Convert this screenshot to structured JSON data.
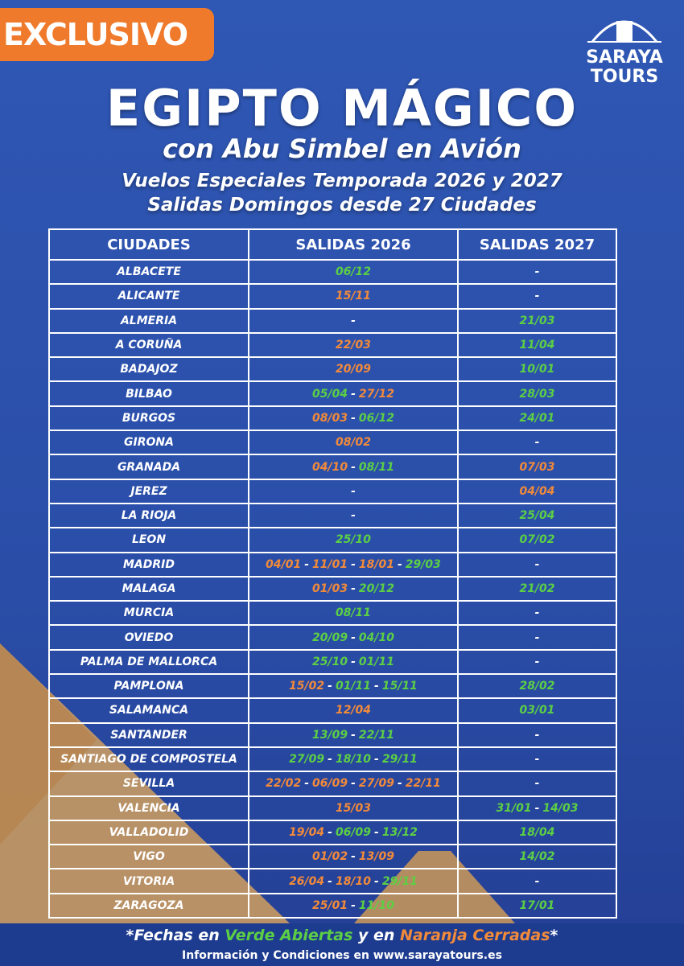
{
  "badge": "EXCLUSIVO",
  "logo": {
    "line1": "SARAYA",
    "line2": "TOURS"
  },
  "header": {
    "title": "EGIPTO MÁGICO",
    "subtitle": "con Abu Simbel en Avión",
    "line1": "Vuelos Especiales Temporada 2026 y 2027",
    "line2": "Salidas Domingos desde 27 Ciudades"
  },
  "table": {
    "columns": [
      "CIUDADES",
      "SALIDAS 2026",
      "SALIDAS 2027"
    ],
    "separator": "-",
    "rows": [
      [
        "ALBACETE",
        [
          {
            "t": "06/12",
            "c": "#5ccf45"
          }
        ],
        [
          {
            "t": "-",
            "c": "#ffffff"
          }
        ]
      ],
      [
        "ALICANTE",
        [
          {
            "t": "15/11",
            "c": "#f28a3a"
          }
        ],
        [
          {
            "t": "-",
            "c": "#ffffff"
          }
        ]
      ],
      [
        "ALMERIA",
        [
          {
            "t": "-",
            "c": "#ffffff"
          }
        ],
        [
          {
            "t": "21/03",
            "c": "#5ccf45"
          }
        ]
      ],
      [
        "A CORUÑA",
        [
          {
            "t": "22/03",
            "c": "#f28a3a"
          }
        ],
        [
          {
            "t": "11/04",
            "c": "#5ccf45"
          }
        ]
      ],
      [
        "BADAJOZ",
        [
          {
            "t": "20/09",
            "c": "#f28a3a"
          }
        ],
        [
          {
            "t": "10/01",
            "c": "#5ccf45"
          }
        ]
      ],
      [
        "BILBAO",
        [
          {
            "t": "05/04",
            "c": "#5ccf45"
          },
          {
            "t": "27/12",
            "c": "#f28a3a"
          }
        ],
        [
          {
            "t": "28/03",
            "c": "#5ccf45"
          }
        ]
      ],
      [
        "BURGOS",
        [
          {
            "t": "08/03",
            "c": "#f28a3a"
          },
          {
            "t": "06/12",
            "c": "#5ccf45"
          }
        ],
        [
          {
            "t": "24/01",
            "c": "#5ccf45"
          }
        ]
      ],
      [
        "GIRONA",
        [
          {
            "t": "08/02",
            "c": "#f28a3a"
          }
        ],
        [
          {
            "t": "-",
            "c": "#ffffff"
          }
        ]
      ],
      [
        "GRANADA",
        [
          {
            "t": "04/10",
            "c": "#f28a3a"
          },
          {
            "t": "08/11",
            "c": "#5ccf45"
          }
        ],
        [
          {
            "t": "07/03",
            "c": "#f28a3a"
          }
        ]
      ],
      [
        "JEREZ",
        [
          {
            "t": "-",
            "c": "#ffffff"
          }
        ],
        [
          {
            "t": "04/04",
            "c": "#f28a3a"
          }
        ]
      ],
      [
        "LA RIOJA",
        [
          {
            "t": "-",
            "c": "#ffffff"
          }
        ],
        [
          {
            "t": "25/04",
            "c": "#5ccf45"
          }
        ]
      ],
      [
        "LEON",
        [
          {
            "t": "25/10",
            "c": "#5ccf45"
          }
        ],
        [
          {
            "t": "07/02",
            "c": "#5ccf45"
          }
        ]
      ],
      [
        "MADRID",
        [
          {
            "t": "04/01",
            "c": "#f28a3a"
          },
          {
            "t": "11/01",
            "c": "#f28a3a"
          },
          {
            "t": "18/01",
            "c": "#f28a3a"
          },
          {
            "t": "29/03",
            "c": "#5ccf45"
          }
        ],
        [
          {
            "t": "-",
            "c": "#ffffff"
          }
        ]
      ],
      [
        "MALAGA",
        [
          {
            "t": "01/03",
            "c": "#f28a3a"
          },
          {
            "t": "20/12",
            "c": "#5ccf45"
          }
        ],
        [
          {
            "t": "21/02",
            "c": "#5ccf45"
          }
        ]
      ],
      [
        "MURCIA",
        [
          {
            "t": "08/11",
            "c": "#5ccf45"
          }
        ],
        [
          {
            "t": "-",
            "c": "#ffffff"
          }
        ]
      ],
      [
        "OVIEDO",
        [
          {
            "t": "20/09",
            "c": "#5ccf45"
          },
          {
            "t": "04/10",
            "c": "#5ccf45"
          }
        ],
        [
          {
            "t": "-",
            "c": "#ffffff"
          }
        ]
      ],
      [
        "PALMA DE  MALLORCA",
        [
          {
            "t": "25/10",
            "c": "#5ccf45"
          },
          {
            "t": "01/11",
            "c": "#5ccf45"
          }
        ],
        [
          {
            "t": "-",
            "c": "#ffffff"
          }
        ]
      ],
      [
        "PAMPLONA",
        [
          {
            "t": "15/02",
            "c": "#f28a3a"
          },
          {
            "t": "01/11",
            "c": "#5ccf45"
          },
          {
            "t": "15/11",
            "c": "#5ccf45"
          }
        ],
        [
          {
            "t": "28/02",
            "c": "#5ccf45"
          }
        ]
      ],
      [
        "SALAMANCA",
        [
          {
            "t": "12/04",
            "c": "#f28a3a"
          }
        ],
        [
          {
            "t": "03/01",
            "c": "#5ccf45"
          }
        ]
      ],
      [
        "SANTANDER",
        [
          {
            "t": "13/09",
            "c": "#5ccf45"
          },
          {
            "t": "22/11",
            "c": "#5ccf45"
          }
        ],
        [
          {
            "t": "-",
            "c": "#ffffff"
          }
        ]
      ],
      [
        "SANTIAGO DE COMPOSTELA",
        [
          {
            "t": "27/09",
            "c": "#5ccf45"
          },
          {
            "t": "18/10",
            "c": "#5ccf45"
          },
          {
            "t": "29/11",
            "c": "#5ccf45"
          }
        ],
        [
          {
            "t": "-",
            "c": "#ffffff"
          }
        ]
      ],
      [
        "SEVILLA",
        [
          {
            "t": "22/02",
            "c": "#f28a3a"
          },
          {
            "t": "06/09",
            "c": "#f28a3a"
          },
          {
            "t": "27/09",
            "c": "#f28a3a"
          },
          {
            "t": "22/11",
            "c": "#f28a3a"
          }
        ],
        [
          {
            "t": "-",
            "c": "#ffffff"
          }
        ]
      ],
      [
        "VALENCIA",
        [
          {
            "t": "15/03",
            "c": "#f28a3a"
          }
        ],
        [
          {
            "t": "31/01",
            "c": "#5ccf45"
          },
          {
            "t": "14/03",
            "c": "#5ccf45"
          }
        ]
      ],
      [
        "VALLADOLID",
        [
          {
            "t": "19/04",
            "c": "#f28a3a"
          },
          {
            "t": "06/09",
            "c": "#5ccf45"
          },
          {
            "t": "13/12",
            "c": "#5ccf45"
          }
        ],
        [
          {
            "t": "18/04",
            "c": "#5ccf45"
          }
        ]
      ],
      [
        "VIGO",
        [
          {
            "t": "01/02",
            "c": "#f28a3a"
          },
          {
            "t": "13/09",
            "c": "#f28a3a"
          }
        ],
        [
          {
            "t": "14/02",
            "c": "#5ccf45"
          }
        ]
      ],
      [
        "VITORIA",
        [
          {
            "t": "26/04",
            "c": "#f28a3a"
          },
          {
            "t": "18/10",
            "c": "#f28a3a"
          },
          {
            "t": "29/11",
            "c": "#5ccf45"
          }
        ],
        [
          {
            "t": "-",
            "c": "#ffffff"
          }
        ]
      ],
      [
        "ZARAGOZA",
        [
          {
            "t": "25/01",
            "c": "#f28a3a"
          },
          {
            "t": "11/10",
            "c": "#5ccf45"
          }
        ],
        [
          {
            "t": "17/01",
            "c": "#5ccf45"
          }
        ]
      ]
    ]
  },
  "footer": {
    "note": [
      {
        "t": "*Fechas en ",
        "c": "#ffffff"
      },
      {
        "t": "Verde Abiertas",
        "c": "#5ccf45"
      },
      {
        "t": " y en ",
        "c": "#ffffff"
      },
      {
        "t": "Naranja Cerradas",
        "c": "#f28a3a"
      },
      {
        "t": "*",
        "c": "#ffffff"
      }
    ],
    "info": "Información y Condiciones en www.sarayatours.es"
  }
}
